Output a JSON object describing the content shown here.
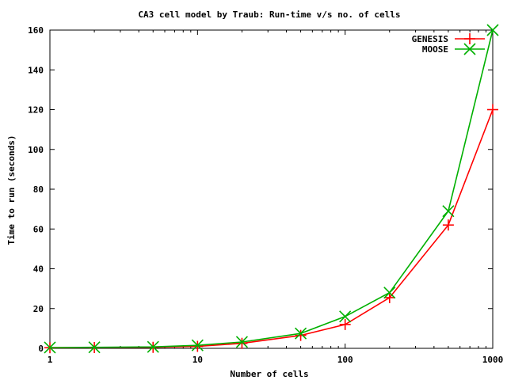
{
  "chart_data": {
    "type": "line",
    "title": "CA3 cell model by Traub: Run-time v/s no. of cells",
    "xlabel": "Number of cells",
    "ylabel": "Time to run (seconds)",
    "xscale": "log",
    "xlim": [
      1,
      1000
    ],
    "ylim": [
      0,
      160
    ],
    "xticks": [
      1,
      10,
      100,
      1000
    ],
    "xtick_labels": [
      "1",
      "10",
      "100",
      "1000"
    ],
    "yticks": [
      0,
      20,
      40,
      60,
      80,
      100,
      120,
      140,
      160
    ],
    "ytick_labels": [
      "0",
      "20",
      "40",
      "60",
      "80",
      "100",
      "120",
      "140",
      "160"
    ],
    "grid": false,
    "legend_position": "top-right",
    "x": [
      1,
      2,
      5,
      10,
      20,
      50,
      100,
      200,
      500,
      1000
    ],
    "series": [
      {
        "name": "GENESIS",
        "color": "#ff0000",
        "marker": "plus",
        "values": [
          0.3,
          0.4,
          0.5,
          1.0,
          2.5,
          6.5,
          12,
          25.5,
          62,
          120
        ]
      },
      {
        "name": "MOOSE",
        "color": "#00b000",
        "marker": "x",
        "values": [
          0.4,
          0.5,
          0.7,
          1.5,
          3.2,
          7.5,
          16,
          28,
          69,
          160
        ]
      }
    ]
  }
}
